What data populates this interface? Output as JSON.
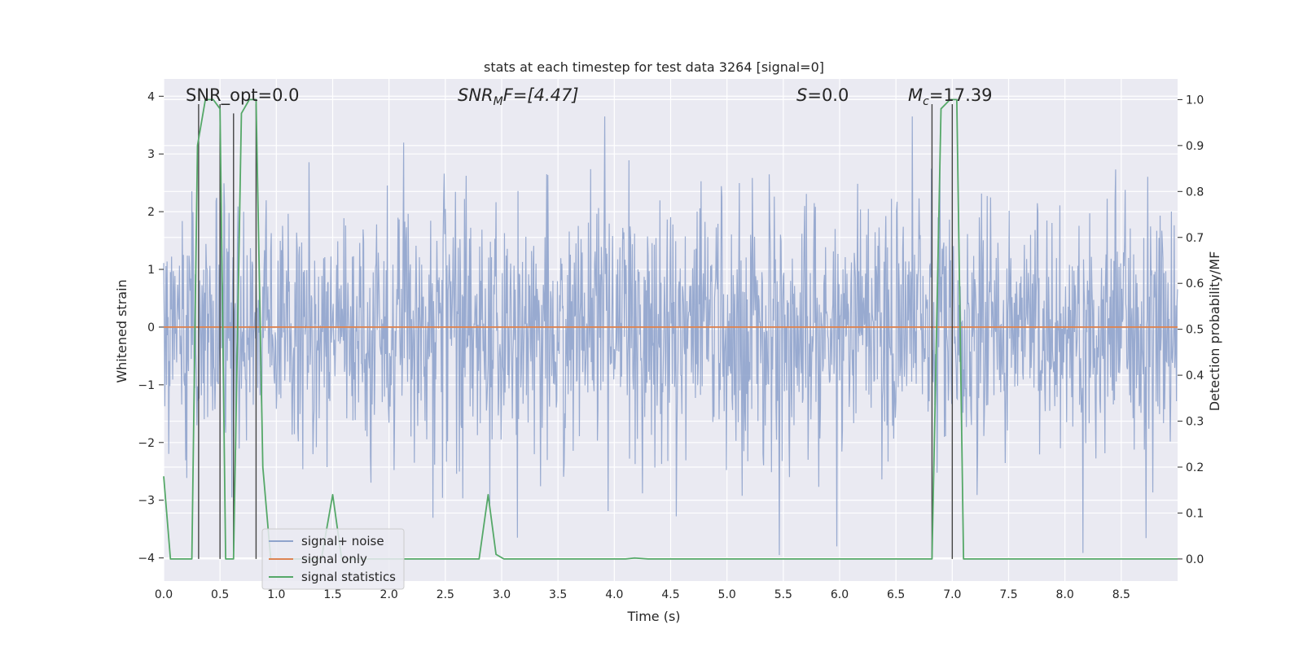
{
  "chart_data": {
    "type": "line",
    "title": "stats at each timestep for test data 3264 [signal=0]",
    "xlabel": "Time (s)",
    "ylabel_left": "Whitened strain",
    "ylabel_right": "Detection probability/MF",
    "xlim": [
      0,
      9.0
    ],
    "ylim_left": [
      -4.4,
      4.3
    ],
    "ylim_right": [
      -0.048,
      1.045
    ],
    "x_ticks": [
      "0.0",
      "0.5",
      "1.0",
      "1.5",
      "2.0",
      "2.5",
      "3.0",
      "3.5",
      "4.0",
      "4.5",
      "5.0",
      "5.5",
      "6.0",
      "6.5",
      "7.0",
      "7.5",
      "8.0",
      "8.5"
    ],
    "y_left_ticks": [
      "−4",
      "−3",
      "−2",
      "−1",
      "0",
      "1",
      "2",
      "3",
      "4"
    ],
    "y_right_ticks": [
      "0.0",
      "0.1",
      "0.2",
      "0.3",
      "0.4",
      "0.5",
      "0.6",
      "0.7",
      "0.8",
      "0.9",
      "1.0"
    ],
    "grid": true,
    "legend_position": "lower-left",
    "annotations": {
      "snr_opt": "SNR_opt=0.0",
      "snr_mf_sym": "SNR",
      "snr_mf_sub": "M",
      "snr_mf_rest": "F=[4.47]",
      "s_sym": "S",
      "s_rest": "=0.0",
      "mc_sym": "M",
      "mc_sub": "c",
      "mc_rest": "=17.39"
    },
    "series": [
      {
        "name": "signal+ noise",
        "axis": "left",
        "color": "#8fa3cc",
        "style": "dense noise",
        "sample_rate_hz": 200,
        "typical_range": [
          -2.5,
          2.5
        ],
        "max_peak": 3.65,
        "min_trough": -3.95
      },
      {
        "name": "signal only",
        "axis": "left",
        "color": "#dd8452",
        "x": [
          0,
          9.0
        ],
        "y": [
          0,
          0
        ]
      },
      {
        "name": "signal statistics",
        "axis": "right",
        "color": "#55a868",
        "x": [
          0.0,
          0.06,
          0.25,
          0.3,
          0.37,
          0.44,
          0.5,
          0.55,
          0.62,
          0.69,
          0.76,
          0.82,
          0.88,
          0.95,
          1.02,
          1.4,
          1.5,
          1.58,
          1.65,
          2.8,
          2.88,
          2.95,
          3.02,
          4.1,
          4.18,
          4.3,
          6.82,
          6.9,
          6.98,
          7.04,
          7.1,
          9.0
        ],
        "y": [
          0.18,
          0.0,
          0.0,
          0.9,
          1.0,
          1.0,
          0.98,
          0.0,
          0.0,
          0.97,
          1.0,
          1.0,
          0.2,
          0.0,
          0.0,
          0.0,
          0.14,
          0.0,
          0.0,
          0.0,
          0.14,
          0.01,
          0.0,
          0.0,
          0.002,
          0.0,
          0.0,
          0.98,
          1.0,
          1.0,
          0.0,
          0.0
        ]
      }
    ],
    "vertical_markers": {
      "color": "#444444",
      "x": [
        0.31,
        0.5,
        0.62,
        0.82,
        6.82,
        7.0
      ],
      "y_top_right": [
        0.99,
        0.99,
        0.97,
        0.99,
        0.99,
        0.99
      ]
    },
    "legend": [
      "signal+ noise",
      "signal only",
      "signal statistics"
    ]
  },
  "colors": {
    "plot_background": "#eaeaf2",
    "grid": "#ffffff",
    "text": "#262626"
  }
}
